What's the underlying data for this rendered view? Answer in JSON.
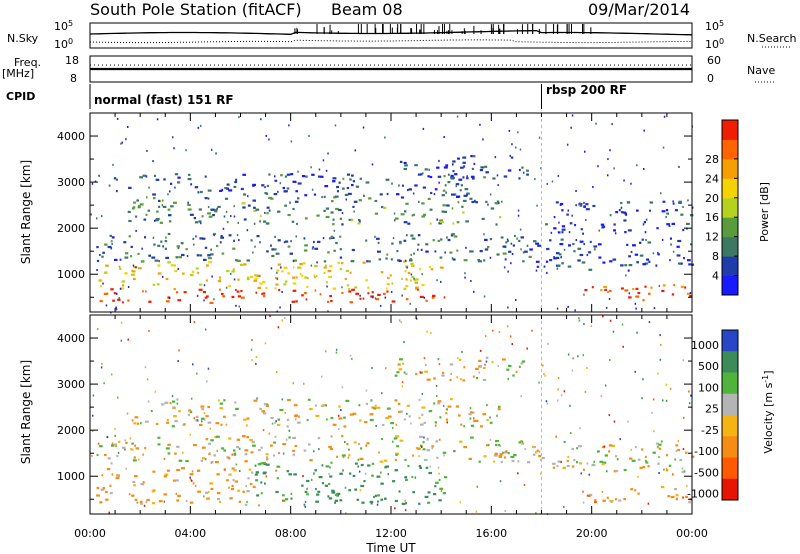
{
  "header": {
    "station": "South Pole Station (fitACF)",
    "beam": "Beam 08",
    "date": "09/Mar/2014"
  },
  "status_panels": {
    "nsky_label": "N.Sky",
    "nsky_ticks": [
      "10^5",
      "10^0"
    ],
    "nsearch_label": "N.Search",
    "nsearch_ticks": [
      "10^5",
      "10^0"
    ],
    "freq_label": "Freq.",
    "freq_unit": "[MHz]",
    "freq_ticks": [
      "18",
      "8"
    ],
    "nave_label": "Nave",
    "nave_ticks": [
      "60",
      "0"
    ],
    "cpid_label": "CPID",
    "cpid_segments": [
      {
        "label": "normal (fast) 151 RF",
        "start_hour": 0
      },
      {
        "label": "rbsp 200 RF",
        "start_hour": 18
      }
    ]
  },
  "chart_data": [
    {
      "type": "heatmap",
      "title": "",
      "xlabel": "Time UT",
      "ylabel": "Slant Range [km]",
      "xlim": [
        0,
        24
      ],
      "ylim": [
        180,
        4500
      ],
      "x_ticks": [
        "00:00",
        "04:00",
        "08:00",
        "12:00",
        "16:00",
        "20:00",
        "00:00"
      ],
      "y_ticks": [
        "1000",
        "2000",
        "3000",
        "4000"
      ],
      "colorbar": {
        "label": "Power [dB]",
        "ticks": [
          "4",
          "8",
          "12",
          "16",
          "20",
          "24",
          "28"
        ],
        "colors": [
          "#1919ff",
          "#1e3caa",
          "#3c7864",
          "#5a9b3c",
          "#b4d21e",
          "#f5d200",
          "#f5a000",
          "#ff6400",
          "#f01e00"
        ]
      },
      "regions": [
        {
          "from_hour": 0.2,
          "to_hour": 14.2,
          "range_km": [
            400,
            700
          ],
          "power_db": 30
        },
        {
          "from_hour": 0.2,
          "to_hour": 14.0,
          "range_km": [
            700,
            1300
          ],
          "power_db": 20
        },
        {
          "from_hour": 0.2,
          "to_hour": 17.5,
          "range_km": [
            1300,
            1900
          ],
          "power_db": 8
        },
        {
          "from_hour": 1.5,
          "to_hour": 16.5,
          "range_km": [
            2100,
            2700
          ],
          "power_db": 10
        },
        {
          "from_hour": 0.5,
          "to_hour": 15.0,
          "range_km": [
            2700,
            3200
          ],
          "power_db": 6
        },
        {
          "from_hour": 12.0,
          "to_hour": 17.5,
          "range_km": [
            3100,
            3600
          ],
          "power_db": 6
        },
        {
          "from_hour": 17.5,
          "to_hour": 24.0,
          "range_km": [
            1100,
            1800
          ],
          "power_db": 6
        },
        {
          "from_hour": 18.0,
          "to_hour": 24.0,
          "range_km": [
            1900,
            2600
          ],
          "power_db": 4
        },
        {
          "from_hour": 19.5,
          "to_hour": 24.0,
          "range_km": [
            450,
            800
          ],
          "power_db": 28
        }
      ]
    },
    {
      "type": "heatmap",
      "title": "",
      "xlabel": "Time UT",
      "ylabel": "Slant Range [km]",
      "xlim": [
        0,
        24
      ],
      "ylim": [
        180,
        4500
      ],
      "x_ticks": [
        "00:00",
        "04:00",
        "08:00",
        "12:00",
        "16:00",
        "20:00",
        "00:00"
      ],
      "y_ticks": [
        "1000",
        "2000",
        "3000",
        "4000"
      ],
      "colorbar": {
        "label": "Velocity [m s^-1]",
        "ticks": [
          "1000",
          "500",
          "100",
          "25",
          "-25",
          "-100",
          "-500",
          "-1000"
        ],
        "colors": [
          "#2846c8",
          "#3c8c5a",
          "#50b43c",
          "#b4b4b4",
          "#f5b414",
          "#f58c14",
          "#ff5a00",
          "#e61400"
        ]
      },
      "regions": [
        {
          "from_hour": 0.2,
          "to_hour": 6.5,
          "range_km": [
            400,
            1200
          ],
          "velocity_ms": -100
        },
        {
          "from_hour": 6.5,
          "to_hour": 14.2,
          "range_km": [
            400,
            1300
          ],
          "velocity_ms": 300
        },
        {
          "from_hour": 0.2,
          "to_hour": 17.5,
          "range_km": [
            1300,
            1900
          ],
          "velocity_ms": 0
        },
        {
          "from_hour": 1.5,
          "to_hour": 16.5,
          "range_km": [
            2100,
            2700
          ],
          "velocity_ms": 0
        },
        {
          "from_hour": 12.0,
          "to_hour": 17.5,
          "range_km": [
            3100,
            3600
          ],
          "velocity_ms": 0
        },
        {
          "from_hour": 17.5,
          "to_hour": 24.0,
          "range_km": [
            1100,
            1800
          ],
          "velocity_ms": 0
        },
        {
          "from_hour": 19.5,
          "to_hour": 24.0,
          "range_km": [
            450,
            800
          ],
          "velocity_ms": -150
        }
      ]
    }
  ]
}
